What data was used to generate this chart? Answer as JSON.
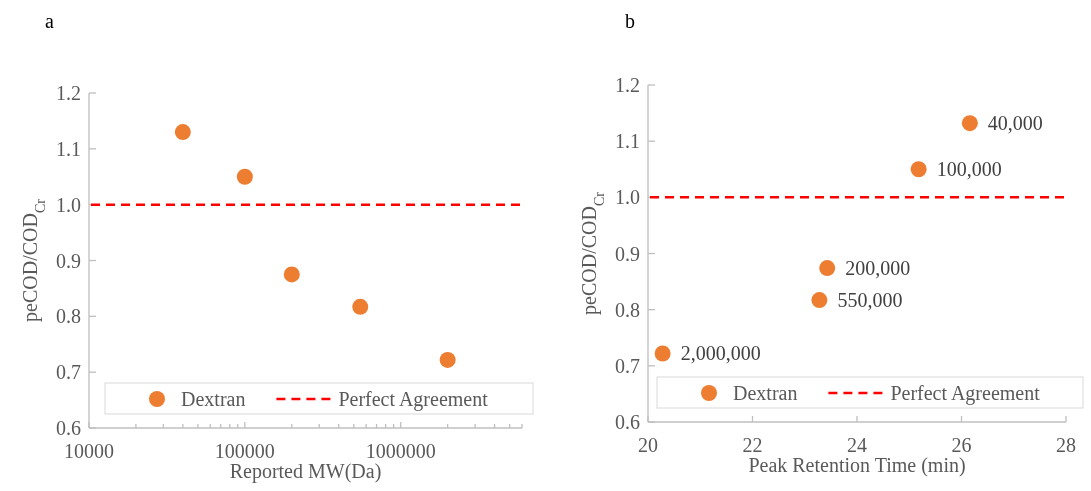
{
  "chart_data": [
    {
      "type": "scatter",
      "title": "a",
      "xlabel": "Reported MW(Da)",
      "ylabel": "peCOD/COD$_{Cr}$",
      "log": "x",
      "xlim": [
        10000,
        6000000
      ],
      "xticks": [
        10000,
        {
          "value": 20000,
          "label": null
        },
        {
          "value": 30000,
          "label": null
        },
        {
          "value": 40000,
          "label": null
        },
        {
          "value": 50000,
          "label": null
        },
        {
          "value": 60000,
          "label": null
        },
        {
          "value": 70000,
          "label": null
        },
        {
          "value": 80000,
          "label": null
        },
        {
          "value": 90000,
          "label": null
        },
        100000,
        {
          "value": 200000,
          "label": null
        },
        {
          "value": 300000,
          "label": null
        },
        {
          "value": 400000,
          "label": null
        },
        {
          "value": 500000,
          "label": null
        },
        {
          "value": 600000,
          "label": null
        },
        {
          "value": 700000,
          "label": null
        },
        {
          "value": 800000,
          "label": null
        },
        {
          "value": 900000,
          "label": null
        },
        1000000,
        {
          "value": 2000000,
          "label": null
        },
        {
          "value": 3000000,
          "label": null
        },
        {
          "value": 4000000,
          "label": null
        },
        {
          "value": 5000000,
          "label": null
        },
        {
          "value": 6000000,
          "label": null
        }
      ],
      "ylim": [
        0.6,
        1.2
      ],
      "yticks": [
        0.6,
        0.7,
        0.8,
        0.9,
        {
          "value": 1,
          "label": "1.0"
        },
        1.1,
        1.2
      ],
      "grid": false,
      "legend": "bottom",
      "marker": "circle",
      "x": [
        40000,
        100000,
        200000,
        550000,
        2000000
      ],
      "series": [
        {
          "name": "Dextran",
          "color": "#ed7d31",
          "values": [
            1.13,
            1.05,
            0.875,
            0.817,
            0.722
          ]
        }
      ],
      "ref_lines": [
        {
          "axis": "y",
          "value": 1,
          "label": "Perfect Agreement",
          "color": "#ff0000",
          "line_style": "dashed"
        }
      ]
    },
    {
      "type": "scatter",
      "title": "b",
      "xlabel": "Peak Retention Time (min)",
      "ylabel": "peCOD/COD$_{Cr}$",
      "xlim": [
        20,
        28
      ],
      "xticks": [
        20,
        22,
        24,
        26,
        28
      ],
      "ylim": [
        0.6,
        1.2
      ],
      "yticks": [
        0.6,
        0.7,
        0.8,
        0.9,
        {
          "value": 1,
          "label": "1.0"
        },
        1.1,
        1.2
      ],
      "grid": false,
      "legend": "bottom",
      "marker": "circle",
      "x": [
        26.16,
        25.18,
        23.43,
        23.28,
        20.28
      ],
      "series": [
        {
          "name": "Dextran",
          "color": "#ed7d31",
          "values": [
            1.132,
            1.05,
            0.874,
            0.817,
            0.722
          ]
        }
      ],
      "annotations": [
        {
          "text": "40,000",
          "x": 26.16,
          "y": 1.132
        },
        {
          "text": "100,000",
          "x": 25.18,
          "y": 1.05
        },
        {
          "text": "200,000",
          "x": 23.43,
          "y": 0.874
        },
        {
          "text": "550,000",
          "x": 23.28,
          "y": 0.817
        },
        {
          "text": "2,000,000",
          "x": 20.28,
          "y": 0.722
        }
      ],
      "ref_lines": [
        {
          "axis": "y",
          "value": 1,
          "label": "Perfect Agreement",
          "color": "#ff0000",
          "line_style": "dashed"
        }
      ]
    }
  ]
}
